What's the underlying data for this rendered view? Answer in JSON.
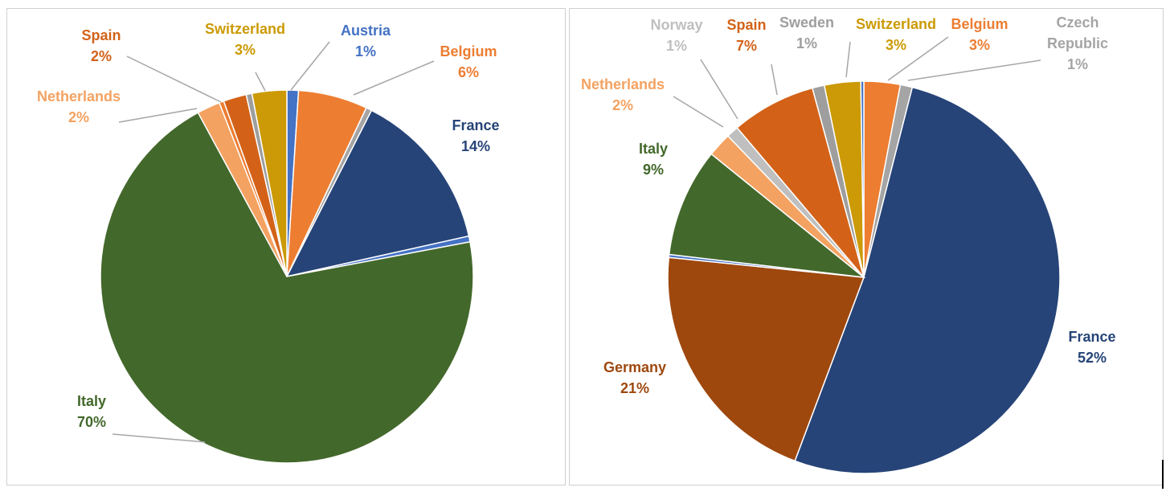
{
  "chart_data": [
    {
      "type": "pie",
      "title": "",
      "slices": [
        {
          "name": "Austria",
          "value": 1,
          "label": "1%",
          "color": "#4472C4"
        },
        {
          "name": "Belgium",
          "value": 6,
          "label": "6%",
          "color": "#ED7D31"
        },
        {
          "name": "",
          "value": 0.5,
          "label": "",
          "color": "#A5A5A5"
        },
        {
          "name": "France",
          "value": 14,
          "label": "14%",
          "color": "#264478"
        },
        {
          "name": "",
          "value": 0.5,
          "label": "",
          "color": "#4472C4"
        },
        {
          "name": "Italy",
          "value": 70,
          "label": "70%",
          "color": "#43682B"
        },
        {
          "name": "Netherlands",
          "value": 2,
          "label": "2%",
          "color": "#F4A261"
        },
        {
          "name": "",
          "value": 0.4,
          "label": "",
          "color": "#ED7D31"
        },
        {
          "name": "Spain",
          "value": 2,
          "label": "2%",
          "color": "#D36218"
        },
        {
          "name": "",
          "value": 0.5,
          "label": "",
          "color": "#9E9E9E"
        },
        {
          "name": "Switzerland",
          "value": 3,
          "label": "3%",
          "color": "#CC9A06"
        }
      ]
    },
    {
      "type": "pie",
      "title": "",
      "slices": [
        {
          "name": "Belgium",
          "value": 3,
          "label": "3%",
          "color": "#ED7D31"
        },
        {
          "name": "Czech Republic",
          "value": 1,
          "label": "1%",
          "color": "#A5A5A5"
        },
        {
          "name": "France",
          "value": 52,
          "label": "52%",
          "color": "#264478"
        },
        {
          "name": "Germany",
          "value": 21,
          "label": "21%",
          "color": "#9E480E"
        },
        {
          "name": "",
          "value": 0.25,
          "label": "",
          "color": "#4472C4"
        },
        {
          "name": "Italy",
          "value": 9,
          "label": "9%",
          "color": "#43682B"
        },
        {
          "name": "Netherlands",
          "value": 2,
          "label": "2%",
          "color": "#F4A261"
        },
        {
          "name": "Norway",
          "value": 1,
          "label": "1%",
          "color": "#BFBFBF"
        },
        {
          "name": "Spain",
          "value": 7,
          "label": "7%",
          "color": "#D36218"
        },
        {
          "name": "Sweden",
          "value": 1,
          "label": "1%",
          "color": "#9E9E9E"
        },
        {
          "name": "Switzerland",
          "value": 3,
          "label": "3%",
          "color": "#CC9A06"
        },
        {
          "name": "",
          "value": 0.25,
          "label": "",
          "color": "#4472C4"
        }
      ]
    }
  ]
}
